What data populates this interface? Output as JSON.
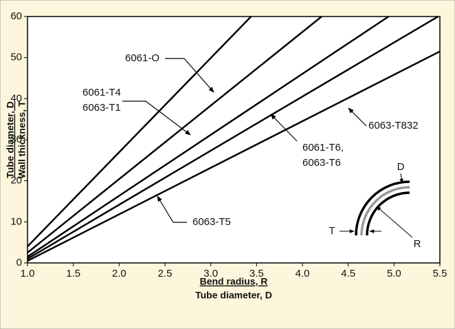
{
  "chart_data": {
    "type": "line",
    "xlim": [
      1.0,
      5.5
    ],
    "ylim": [
      0,
      60
    ],
    "xticks": [
      {
        "value": 1.0,
        "label": "1.0"
      },
      1.5,
      {
        "value": 2.0,
        "label": "2.0"
      },
      2.5,
      {
        "value": 3.0,
        "label": "3.0"
      },
      3.5,
      {
        "value": 4.0,
        "label": "4.0"
      },
      4.5,
      {
        "value": 5.0,
        "label": "5.0"
      },
      5.5
    ],
    "yticks": [
      0,
      10,
      20,
      30,
      40,
      50,
      60
    ],
    "xlabel": {
      "numerator": "Bend radius,  R",
      "denominator": "Tube diameter, D"
    },
    "ylabel": {
      "numerator": "Tube diameter, D",
      "denominator": "Wall thickness, T"
    },
    "series": [
      {
        "color": "#000000",
        "x": [
          1.0,
          3.44
        ],
        "values": [
          4,
          60
        ]
      },
      {
        "color": "#000000",
        "x": [
          1.0,
          4.21
        ],
        "values": [
          2.5,
          60
        ]
      },
      {
        "color": "#000000",
        "x": [
          1.0,
          4.94
        ],
        "values": [
          1.5,
          60
        ]
      },
      {
        "color": "#000000",
        "x": [
          1.0,
          5.48
        ],
        "values": [
          1,
          60
        ]
      },
      {
        "color": "#000000",
        "x": [
          1.0,
          5.5
        ],
        "values": [
          0.5,
          51.5
        ]
      }
    ],
    "annotations": [
      {
        "lines": [
          "6061-O"
        ]
      },
      {
        "lines": [
          "6061-T4",
          "6063-T1"
        ]
      },
      {
        "lines": [
          "6061-T6,",
          "6063-T6"
        ]
      },
      {
        "lines": [
          "6063-T5"
        ]
      },
      {
        "lines": [
          "6063-T832"
        ]
      }
    ],
    "inset_labels": [
      "D",
      "T",
      "R"
    ]
  }
}
